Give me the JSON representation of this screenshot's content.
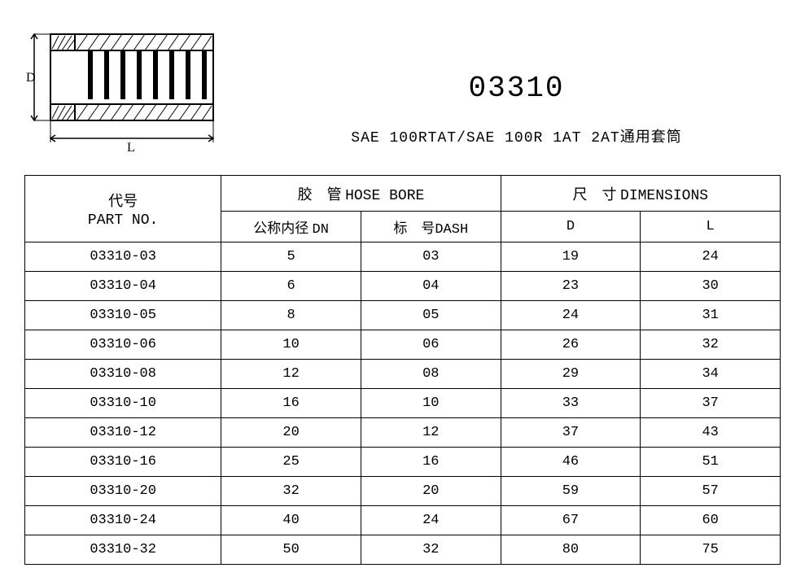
{
  "title": "03310",
  "subtitle": "SAE 100RTAT/SAE 100R 1AT 2AT通用套筒",
  "diagram": {
    "d_label": "D",
    "l_label": "L",
    "stroke": "#000000",
    "hatch": "#000000"
  },
  "table": {
    "headers": {
      "partno_cn": "代号",
      "partno_en": "PART NO.",
      "hosebore_cn": "胶　管",
      "hosebore_en": "HOSE BORE",
      "dimensions_cn": "尺　寸",
      "dimensions_en": "DIMENSIONS",
      "dn_cn": "公称内径",
      "dn_en": "DN",
      "dash_cn": "标　号",
      "dash_en": "DASH",
      "d": "D",
      "l": "L"
    },
    "columns": [
      "partno",
      "dn",
      "dash",
      "d",
      "l"
    ],
    "rows": [
      [
        "03310-03",
        "5",
        "03",
        "19",
        "24"
      ],
      [
        "03310-04",
        "6",
        "04",
        "23",
        "30"
      ],
      [
        "03310-05",
        "8",
        "05",
        "24",
        "31"
      ],
      [
        "03310-06",
        "10",
        "06",
        "26",
        "32"
      ],
      [
        "03310-08",
        "12",
        "08",
        "29",
        "34"
      ],
      [
        "03310-10",
        "16",
        "10",
        "33",
        "37"
      ],
      [
        "03310-12",
        "20",
        "12",
        "37",
        "43"
      ],
      [
        "03310-16",
        "25",
        "16",
        "46",
        "51"
      ],
      [
        "03310-20",
        "32",
        "20",
        "59",
        "57"
      ],
      [
        "03310-24",
        "40",
        "24",
        "67",
        "60"
      ],
      [
        "03310-32",
        "50",
        "32",
        "80",
        "75"
      ]
    ],
    "border_color": "#000000",
    "text_color": "#000000",
    "background": "#ffffff",
    "font_size_body": 17,
    "font_size_header": 18
  }
}
